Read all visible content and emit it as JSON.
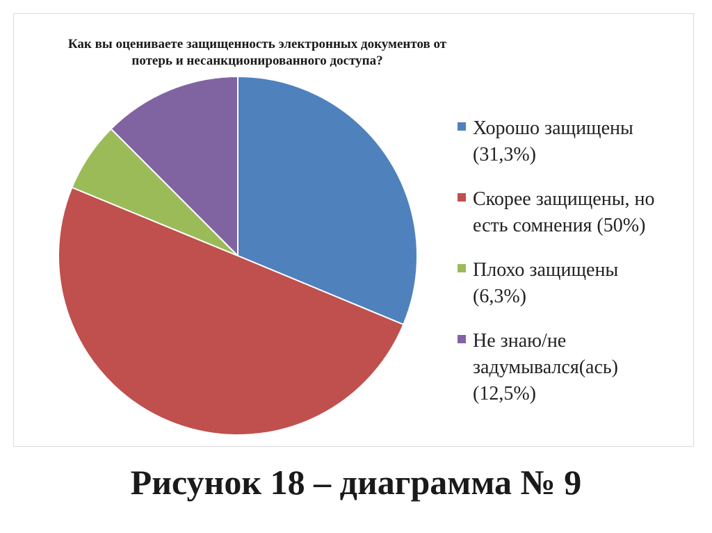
{
  "chart_data": {
    "type": "pie",
    "title_lines": [
      "Как вы оцениваете защищенность электронных документов от",
      "потерь и несанкционированного доступа?"
    ],
    "slices": [
      {
        "label": "Хорошо защищены\n(31,3%)",
        "value": 31.3,
        "color": "#4f81bd"
      },
      {
        "label": "Скорее защищены, но\nесть сомнения (50%)",
        "value": 50,
        "color": "#c0504d"
      },
      {
        "label": "Плохо защищены\n(6,3%)",
        "value": 6.3,
        "color": "#9bbb59"
      },
      {
        "label": "Не знаю/не\nзадумывался(ась)\n(12,5%)",
        "value": 12.5,
        "color": "#8064a2"
      }
    ],
    "start_angle": "12 o'clock",
    "direction": "clockwise",
    "legend_position": "right"
  },
  "caption": "Рисунок 18 – диаграмма № 9"
}
